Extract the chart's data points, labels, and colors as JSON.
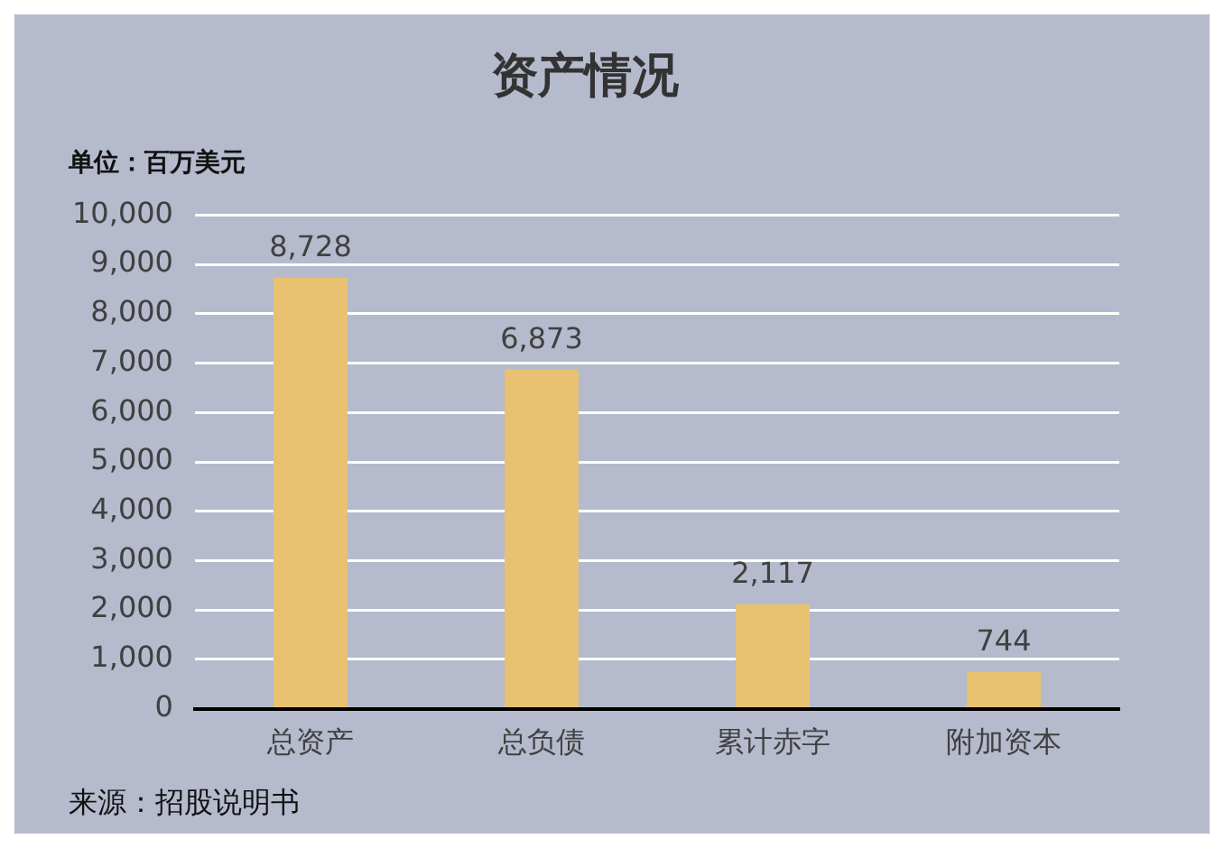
{
  "chart_data": {
    "type": "bar",
    "title": "资产情况",
    "ylabel": "单位：百万美元",
    "categories": [
      "总资产",
      "总负债",
      "累计赤字",
      "附加资本"
    ],
    "values": [
      8728,
      6873,
      2117,
      744
    ],
    "color": "#e8c270",
    "ylim": [
      0,
      10000
    ],
    "yticks": [
      {
        "value": 0,
        "label": "0"
      },
      {
        "value": 1000,
        "label": "1,000"
      },
      {
        "value": 2000,
        "label": "2,000"
      },
      {
        "value": 3000,
        "label": "3,000"
      },
      {
        "value": 4000,
        "label": "4,000"
      },
      {
        "value": 5000,
        "label": "5,000"
      },
      {
        "value": 6000,
        "label": "6,000"
      },
      {
        "value": 7000,
        "label": "7,000"
      },
      {
        "value": 8000,
        "label": "8,000"
      },
      {
        "value": 9000,
        "label": "9,000"
      },
      {
        "value": 10000,
        "label": "10,000"
      }
    ],
    "value_labels": [
      "8,728",
      "6,873",
      "2,117",
      "744"
    ],
    "grid": "y",
    "legend": false,
    "annotations": [
      "来源：招股说明书"
    ]
  }
}
